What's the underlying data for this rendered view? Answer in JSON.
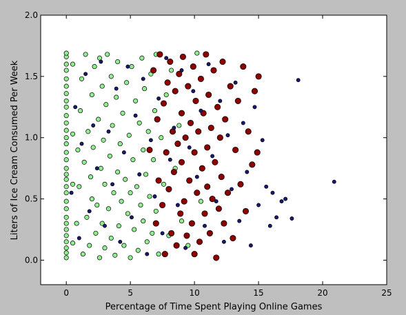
{
  "chart_data": {
    "type": "scatter",
    "title": "",
    "xlabel": "Percentage of Time Spent Playing Online Games",
    "ylabel": "Liters of Ice Cream Consumed Per Week",
    "xlim": [
      -2,
      25
    ],
    "ylim": [
      -0.2,
      2.0
    ],
    "x_ticks": [
      0,
      5,
      10,
      15,
      20,
      25
    ],
    "x_tick_labels": [
      "0",
      "5",
      "10",
      "15",
      "20",
      "25"
    ],
    "y_ticks": [
      0.0,
      0.5,
      1.0,
      1.5,
      2.0
    ],
    "y_tick_labels": [
      "0.0",
      "0.5",
      "1.0",
      "1.5",
      "2.0"
    ],
    "grid": false,
    "legend": "none",
    "colors": {
      "light_green": "#90ee90",
      "dark_red": "#8b0000",
      "navy": "#191970",
      "figure_bg": "#bfbfbf",
      "axes_bg": "#ffffff"
    },
    "series": [
      {
        "color": "#90ee90",
        "marker_size": "medium",
        "points": [
          [
            0,
            0.02
          ],
          [
            0,
            0.06
          ],
          [
            0,
            0.1
          ],
          [
            0,
            0.15
          ],
          [
            0,
            0.2
          ],
          [
            0,
            0.25
          ],
          [
            0,
            0.3
          ],
          [
            0,
            0.35
          ],
          [
            0,
            0.42
          ],
          [
            0,
            0.48
          ],
          [
            0,
            0.55
          ],
          [
            0,
            0.6
          ],
          [
            0,
            0.66
          ],
          [
            0,
            0.7
          ],
          [
            0,
            0.75
          ],
          [
            0,
            0.82
          ],
          [
            0,
            0.88
          ],
          [
            0,
            0.95
          ],
          [
            0,
            1.0
          ],
          [
            0,
            1.06
          ],
          [
            0,
            1.12
          ],
          [
            0,
            1.18
          ],
          [
            0,
            1.25
          ],
          [
            0,
            1.3
          ],
          [
            0,
            1.36
          ],
          [
            0,
            1.42
          ],
          [
            0,
            1.48
          ],
          [
            0,
            1.55
          ],
          [
            0,
            1.6
          ],
          [
            0,
            1.66
          ],
          [
            0,
            1.69
          ],
          [
            0.5,
            0.14
          ],
          [
            0.5,
            0.62
          ],
          [
            0.5,
            1.03
          ],
          [
            0.5,
            1.6
          ],
          [
            0.8,
            0.3
          ],
          [
            0.9,
            0.9
          ],
          [
            1.0,
            0.6
          ],
          [
            1.1,
            1.22
          ],
          [
            1.2,
            1.48
          ],
          [
            1.3,
            0.05
          ],
          [
            1.4,
            0.8
          ],
          [
            1.5,
            1.68
          ],
          [
            1.6,
            0.35
          ],
          [
            1.7,
            1.05
          ],
          [
            1.8,
            0.12
          ],
          [
            1.9,
            0.68
          ],
          [
            2.0,
            1.35
          ],
          [
            2.0,
            0.5
          ],
          [
            2.1,
            0.92
          ],
          [
            2.2,
            1.58
          ],
          [
            2.3,
            0.22
          ],
          [
            2.4,
            0.45
          ],
          [
            2.5,
            1.15
          ],
          [
            2.6,
            0.02
          ],
          [
            2.6,
            1.65
          ],
          [
            2.7,
            0.75
          ],
          [
            2.8,
            0.3
          ],
          [
            2.8,
            1.42
          ],
          [
            2.9,
            0.98
          ],
          [
            3.0,
            0.1
          ],
          [
            3.0,
            0.62
          ],
          [
            3.1,
            1.27
          ],
          [
            3.2,
            1.68
          ],
          [
            3.3,
            0.42
          ],
          [
            3.4,
            0.85
          ],
          [
            3.5,
            0.18
          ],
          [
            3.5,
            1.5
          ],
          [
            3.6,
            1.1
          ],
          [
            3.7,
            0.55
          ],
          [
            3.8,
            0.04
          ],
          [
            3.9,
            1.33
          ],
          [
            4.0,
            0.72
          ],
          [
            4.0,
            1.62
          ],
          [
            4.1,
            0.28
          ],
          [
            4.2,
            0.95
          ],
          [
            4.3,
            0.48
          ],
          [
            4.4,
            1.2
          ],
          [
            4.5,
            0.12
          ],
          [
            4.6,
            0.66
          ],
          [
            4.7,
            1.45
          ],
          [
            4.8,
            0.38
          ],
          [
            4.9,
            1.02
          ],
          [
            5.0,
            0.02
          ],
          [
            5.0,
            0.55
          ],
          [
            5.1,
            1.58
          ],
          [
            5.2,
            0.82
          ],
          [
            5.3,
            0.25
          ],
          [
            5.4,
            1.3
          ],
          [
            5.5,
            0.6
          ],
          [
            5.6,
            0.08
          ],
          [
            5.7,
            1.12
          ],
          [
            5.8,
            0.45
          ],
          [
            5.9,
            1.65
          ],
          [
            6.0,
            0.9
          ],
          [
            6.0,
            0.32
          ],
          [
            6.1,
            1.4
          ],
          [
            6.2,
            0.7
          ],
          [
            6.3,
            0.15
          ],
          [
            6.4,
            1.05
          ],
          [
            6.5,
            0.52
          ],
          [
            6.6,
            1.52
          ],
          [
            6.7,
            0.22
          ],
          [
            6.8,
            0.82
          ],
          [
            6.9,
            1.22
          ],
          [
            7.0,
            0.4
          ],
          [
            7.0,
            1.68
          ],
          [
            7.2,
            0.05
          ],
          [
            7.4,
            1.0
          ],
          [
            7.6,
            0.62
          ],
          [
            7.8,
            1.35
          ],
          [
            8.0,
            0.2
          ],
          [
            8.2,
            1.55
          ],
          [
            8.5,
            0.75
          ],
          [
            8.8,
            1.1
          ],
          [
            9.0,
            0.32
          ],
          [
            9.5,
            0.12
          ],
          [
            10.2,
            1.69
          ],
          [
            10.5,
            0.48
          ]
        ]
      },
      {
        "color": "#8b0000",
        "marker_size": "large",
        "points": [
          [
            6.5,
            0.9
          ],
          [
            6.8,
            1.55
          ],
          [
            7.0,
            0.3
          ],
          [
            7.1,
            1.15
          ],
          [
            7.2,
            0.65
          ],
          [
            7.3,
            1.68
          ],
          [
            7.5,
            0.45
          ],
          [
            7.6,
            1.28
          ],
          [
            7.7,
            0.05
          ],
          [
            7.8,
            0.88
          ],
          [
            7.9,
            1.45
          ],
          [
            8.0,
            0.58
          ],
          [
            8.1,
            1.62
          ],
          [
            8.2,
            0.22
          ],
          [
            8.3,
            1.05
          ],
          [
            8.4,
            0.72
          ],
          [
            8.5,
            1.38
          ],
          [
            8.6,
            0.12
          ],
          [
            8.7,
            0.95
          ],
          [
            8.8,
            1.52
          ],
          [
            8.9,
            0.38
          ],
          [
            9.0,
            1.2
          ],
          [
            9.0,
            0.8
          ],
          [
            9.1,
            1.66
          ],
          [
            9.2,
            0.48
          ],
          [
            9.3,
            1.0
          ],
          [
            9.4,
            0.2
          ],
          [
            9.5,
            1.42
          ],
          [
            9.6,
            0.65
          ],
          [
            9.7,
            1.12
          ],
          [
            9.8,
            0.3
          ],
          [
            9.9,
            1.58
          ],
          [
            10.0,
            0.88
          ],
          [
            10.0,
            0.05
          ],
          [
            10.1,
            1.3
          ],
          [
            10.2,
            0.55
          ],
          [
            10.3,
            1.05
          ],
          [
            10.4,
            0.15
          ],
          [
            10.5,
            1.48
          ],
          [
            10.6,
            0.75
          ],
          [
            10.7,
            1.2
          ],
          [
            10.8,
            0.38
          ],
          [
            10.9,
            1.68
          ],
          [
            11.0,
            0.92
          ],
          [
            11.0,
            0.6
          ],
          [
            11.1,
            1.35
          ],
          [
            11.2,
            0.22
          ],
          [
            11.3,
            1.08
          ],
          [
            11.4,
            0.5
          ],
          [
            11.5,
            1.55
          ],
          [
            11.6,
            0.8
          ],
          [
            11.7,
            0.02
          ],
          [
            11.8,
            1.25
          ],
          [
            11.9,
            0.42
          ],
          [
            12.0,
            1.0
          ],
          [
            12.1,
            0.68
          ],
          [
            12.2,
            1.62
          ],
          [
            12.3,
            0.3
          ],
          [
            12.4,
            1.15
          ],
          [
            12.6,
            0.55
          ],
          [
            12.8,
            1.42
          ],
          [
            13.0,
            0.18
          ],
          [
            13.2,
            0.9
          ],
          [
            13.4,
            1.3
          ],
          [
            13.6,
            0.62
          ],
          [
            13.8,
            1.58
          ],
          [
            14.0,
            0.4
          ],
          [
            14.2,
            1.05
          ],
          [
            14.5,
            0.78
          ],
          [
            14.7,
            1.38
          ],
          [
            14.9,
            0.88
          ],
          [
            15.0,
            1.5
          ]
        ]
      },
      {
        "color": "#191970",
        "marker_size": "small",
        "points": [
          [
            0.4,
            0.55
          ],
          [
            0.7,
            1.25
          ],
          [
            1.0,
            0.18
          ],
          [
            1.2,
            0.95
          ],
          [
            1.5,
            1.52
          ],
          [
            1.8,
            0.4
          ],
          [
            2.1,
            1.1
          ],
          [
            2.4,
            0.75
          ],
          [
            2.7,
            1.62
          ],
          [
            3.0,
            0.28
          ],
          [
            3.3,
            1.05
          ],
          [
            3.6,
            0.62
          ],
          [
            3.9,
            1.4
          ],
          [
            4.2,
            0.15
          ],
          [
            4.5,
            0.88
          ],
          [
            4.8,
            1.58
          ],
          [
            5.1,
            0.35
          ],
          [
            5.4,
            1.18
          ],
          [
            5.7,
            0.7
          ],
          [
            6.0,
            1.48
          ],
          [
            6.3,
            0.05
          ],
          [
            6.6,
            0.98
          ],
          [
            6.9,
            0.52
          ],
          [
            7.2,
            1.32
          ],
          [
            7.5,
            0.22
          ],
          [
            7.8,
            1.65
          ],
          [
            8.1,
            0.82
          ],
          [
            8.4,
            1.08
          ],
          [
            8.7,
            0.45
          ],
          [
            9.0,
            1.55
          ],
          [
            9.3,
            0.1
          ],
          [
            9.6,
            0.92
          ],
          [
            9.9,
            1.38
          ],
          [
            10.2,
            0.68
          ],
          [
            10.5,
            1.22
          ],
          [
            10.8,
            0.28
          ],
          [
            11.1,
            1.6
          ],
          [
            11.4,
            0.85
          ],
          [
            11.7,
            0.48
          ],
          [
            12.0,
            1.3
          ],
          [
            12.3,
            0.15
          ],
          [
            12.6,
            1.02
          ],
          [
            12.9,
            0.58
          ],
          [
            13.2,
            1.45
          ],
          [
            13.5,
            0.32
          ],
          [
            13.8,
            1.12
          ],
          [
            14.1,
            0.72
          ],
          [
            14.4,
            0.12
          ],
          [
            14.7,
            1.25
          ],
          [
            15.0,
            0.45
          ],
          [
            15.3,
            0.98
          ],
          [
            15.6,
            0.6
          ],
          [
            15.9,
            0.28
          ],
          [
            16.1,
            0.55
          ],
          [
            16.4,
            0.35
          ],
          [
            16.8,
            0.48
          ],
          [
            17.1,
            0.5
          ],
          [
            17.6,
            0.34
          ],
          [
            18.1,
            1.47
          ],
          [
            20.9,
            0.64
          ]
        ]
      }
    ]
  }
}
